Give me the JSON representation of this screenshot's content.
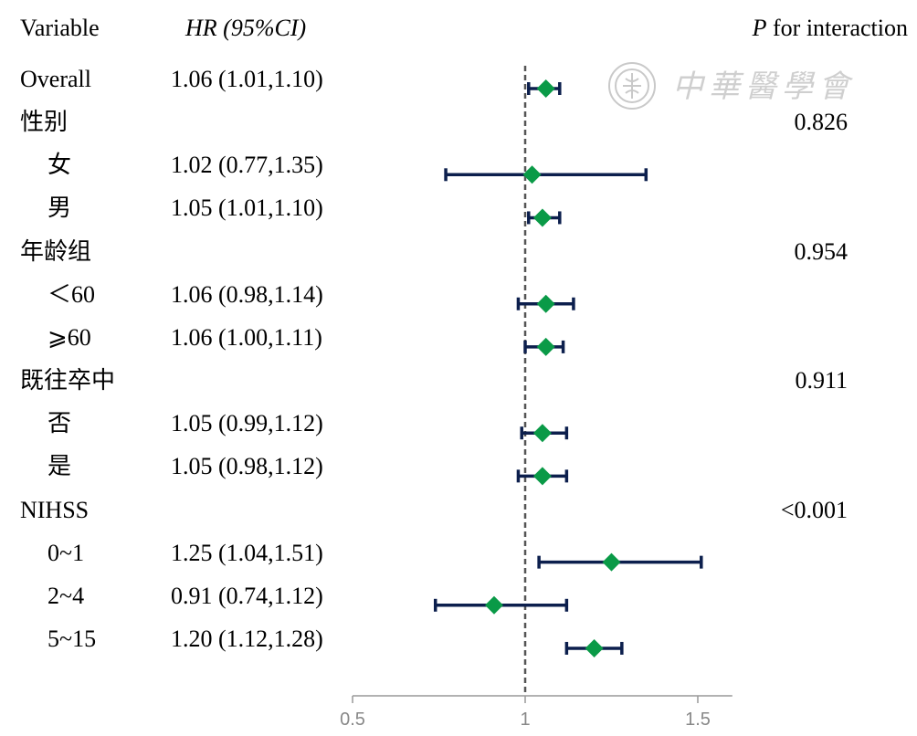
{
  "header": {
    "variable": "Variable",
    "hr": "HR (95%CI)",
    "p_prefix": "P",
    "p_suffix": " for interaction"
  },
  "watermark": {
    "text": "中華醫學會",
    "icon": "society-seal-icon"
  },
  "rows": [
    {
      "label": "Overall",
      "indent": false,
      "hr_text": "1.06 (1.01,1.10)",
      "p": ""
    },
    {
      "label": "性别",
      "indent": false,
      "hr_text": "",
      "p": "0.826"
    },
    {
      "label": "女",
      "indent": true,
      "hr_text": "1.02 (0.77,1.35)",
      "p": ""
    },
    {
      "label": "男",
      "indent": true,
      "hr_text": "1.05 (1.01,1.10)",
      "p": ""
    },
    {
      "label": "年龄组",
      "indent": false,
      "hr_text": "",
      "p": "0.954"
    },
    {
      "label": "＜60",
      "indent": true,
      "hr_text": "1.06 (0.98,1.14)",
      "p": ""
    },
    {
      "label": "⩾60",
      "indent": true,
      "hr_text": "1.06 (1.00,1.11)",
      "p": ""
    },
    {
      "label": "既往卒中",
      "indent": false,
      "hr_text": "",
      "p": "0.911"
    },
    {
      "label": "否",
      "indent": true,
      "hr_text": "1.05 (0.99,1.12)",
      "p": ""
    },
    {
      "label": "是",
      "indent": true,
      "hr_text": "1.05 (0.98,1.12)",
      "p": ""
    },
    {
      "label": "NIHSS",
      "indent": false,
      "hr_text": "",
      "p": "<0.001"
    },
    {
      "label": "0~1",
      "indent": true,
      "hr_text": "1.25 (1.04,1.51)",
      "p": ""
    },
    {
      "label": "2~4",
      "indent": true,
      "hr_text": "0.91 (0.74,1.12)",
      "p": ""
    },
    {
      "label": "5~15",
      "indent": true,
      "hr_text": "1.20 (1.12,1.28)",
      "p": ""
    }
  ],
  "chart_data": {
    "type": "scatter",
    "subtype": "forest",
    "xlim": [
      0.5,
      1.6
    ],
    "xticks": [
      "0.5",
      "1",
      "1.5"
    ],
    "reference_line": 1,
    "colors": {
      "marker": "#0a9a47",
      "ci": "#0c1f4d",
      "reference": "#555555",
      "axis": "#999999"
    },
    "points": [
      {
        "row": 0,
        "label": "Overall",
        "hr": 1.06,
        "lo": 1.01,
        "hi": 1.1
      },
      {
        "row": 2,
        "label": "女",
        "hr": 1.02,
        "lo": 0.77,
        "hi": 1.35
      },
      {
        "row": 3,
        "label": "男",
        "hr": 1.05,
        "lo": 1.01,
        "hi": 1.1
      },
      {
        "row": 5,
        "label": "＜60",
        "hr": 1.06,
        "lo": 0.98,
        "hi": 1.14
      },
      {
        "row": 6,
        "label": "⩾60",
        "hr": 1.06,
        "lo": 1.0,
        "hi": 1.11
      },
      {
        "row": 8,
        "label": "否",
        "hr": 1.05,
        "lo": 0.99,
        "hi": 1.12
      },
      {
        "row": 9,
        "label": "是",
        "hr": 1.05,
        "lo": 0.98,
        "hi": 1.12
      },
      {
        "row": 11,
        "label": "0~1",
        "hr": 1.25,
        "lo": 1.04,
        "hi": 1.51
      },
      {
        "row": 12,
        "label": "2~4",
        "hr": 0.91,
        "lo": 0.74,
        "hi": 1.12
      },
      {
        "row": 13,
        "label": "5~15",
        "hr": 1.2,
        "lo": 1.12,
        "hi": 1.28
      }
    ]
  }
}
